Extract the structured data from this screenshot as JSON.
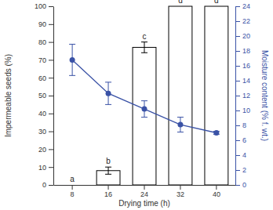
{
  "chart_data": {
    "type": "bar",
    "xlabel": "Drying time (h)",
    "ylabel": "Impermeable seeds (%)",
    "y2label": "Moisture content (% f. wt.)",
    "categories": [
      8,
      16,
      24,
      32,
      40
    ],
    "series": [
      {
        "type": "bar",
        "color": "#ffffff",
        "values": [
          0,
          8,
          77,
          100,
          100
        ],
        "errors": [
          0,
          2,
          3,
          0,
          0
        ]
      },
      {
        "type": "line",
        "axis": "y2",
        "color": "#3a52a6",
        "marker": "circle",
        "line_style": "solid",
        "values": [
          16.8,
          12.3,
          10.2,
          8.1,
          7.0
        ],
        "errors": [
          2.1,
          1.5,
          1.1,
          1.0,
          0.2
        ]
      }
    ],
    "annotations": [
      "a",
      "b",
      "c",
      "d",
      "d"
    ],
    "ylim": [
      0,
      100
    ],
    "yticks": [
      0,
      10,
      20,
      30,
      40,
      50,
      60,
      70,
      80,
      90,
      100
    ],
    "y2lim": [
      0,
      24
    ],
    "y2ticks": [
      0,
      2,
      4,
      6,
      8,
      10,
      12,
      14,
      16,
      18,
      20,
      22,
      24
    ]
  }
}
